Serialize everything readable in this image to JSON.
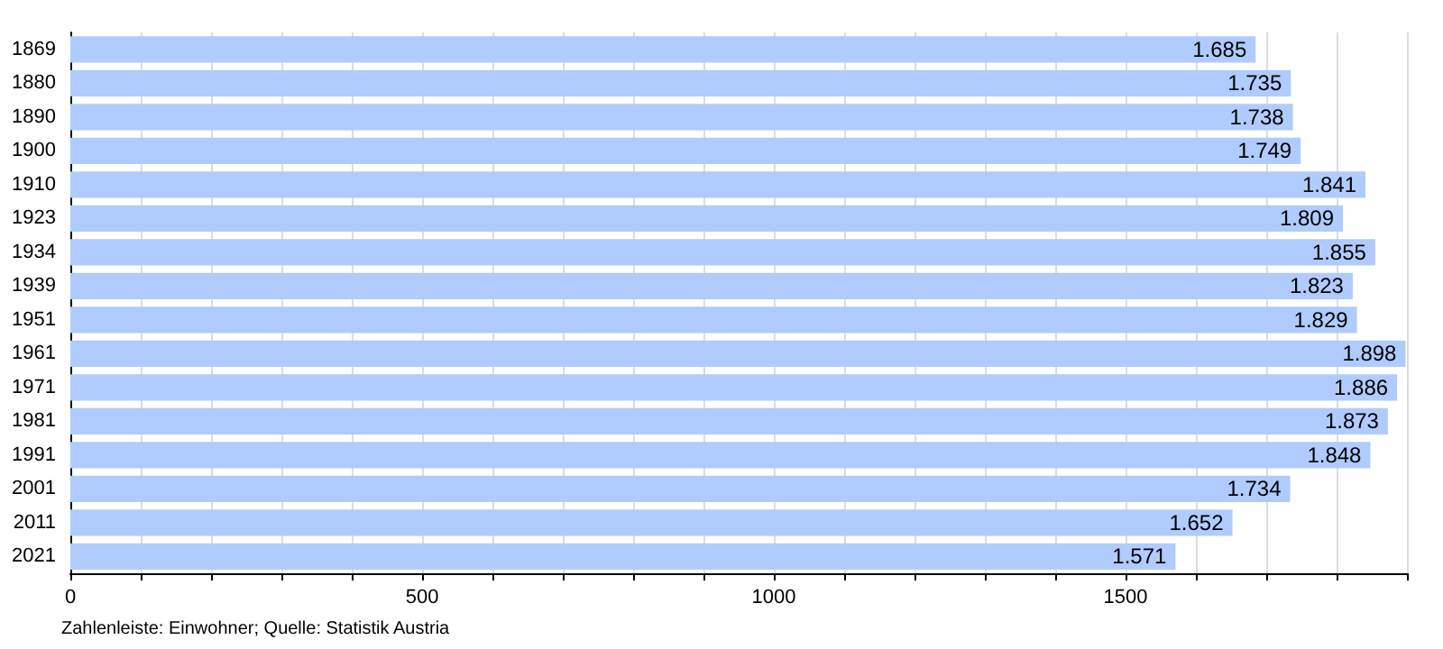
{
  "chart_data": {
    "type": "bar",
    "orientation": "horizontal",
    "categories": [
      "1869",
      "1880",
      "1890",
      "1900",
      "1910",
      "1923",
      "1934",
      "1939",
      "1951",
      "1961",
      "1971",
      "1981",
      "1991",
      "2001",
      "2011",
      "2021"
    ],
    "values": [
      1685,
      1735,
      1738,
      1749,
      1841,
      1809,
      1855,
      1823,
      1829,
      1898,
      1886,
      1873,
      1848,
      1734,
      1652,
      1571
    ],
    "value_labels": [
      "1.685",
      "1.735",
      "1.738",
      "1.749",
      "1.841",
      "1.809",
      "1.855",
      "1.823",
      "1.829",
      "1.898",
      "1.886",
      "1.873",
      "1.848",
      "1.734",
      "1.652",
      "1.571"
    ],
    "color": "#b0cbfd",
    "xlim": [
      0,
      1900
    ],
    "xticks": [
      0,
      {
        "value": 100,
        "label": null
      },
      {
        "value": 200,
        "label": null
      },
      {
        "value": 300,
        "label": null
      },
      {
        "value": 400,
        "label": null
      },
      500,
      {
        "value": 600,
        "label": null
      },
      {
        "value": 700,
        "label": null
      },
      {
        "value": 800,
        "label": null
      },
      {
        "value": 900,
        "label": null
      },
      1000,
      {
        "value": 1100,
        "label": null
      },
      {
        "value": 1200,
        "label": null
      },
      {
        "value": 1300,
        "label": null
      },
      {
        "value": 1400,
        "label": null
      },
      1500,
      {
        "value": 1600,
        "label": null
      },
      {
        "value": 1700,
        "label": null
      },
      {
        "value": 1800,
        "label": null
      },
      {
        "value": 1900,
        "label": null
      }
    ],
    "grid": "x",
    "annotations": [
      "Zahlenleiste: Einwohner; Quelle: Statistik Austria"
    ]
  }
}
